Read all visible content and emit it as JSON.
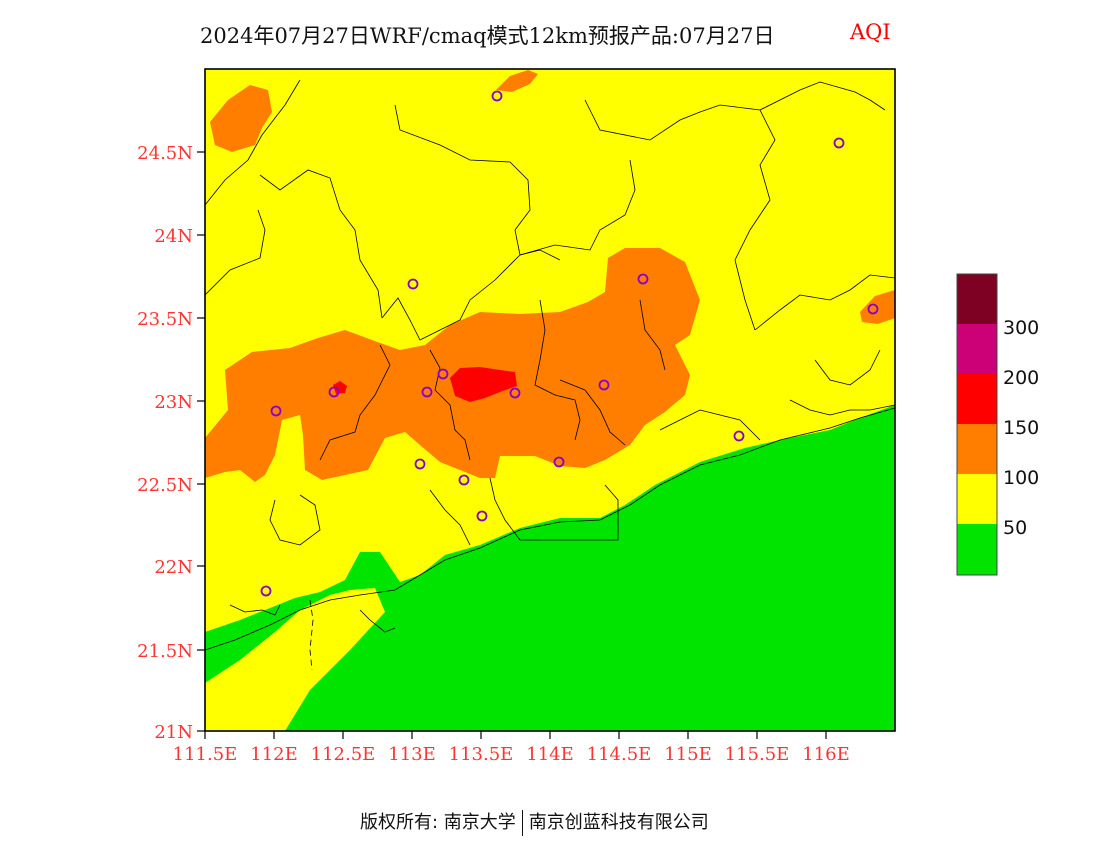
{
  "header": {
    "title": "2024年07月27日WRF/cmaq模式12km预报产品:07月27日",
    "pollutant": "AQI"
  },
  "map": {
    "lat_ticks": [
      "21N",
      "21.5N",
      "22N",
      "22.5N",
      "23N",
      "23.5N",
      "24N",
      "24.5N"
    ],
    "lon_ticks": [
      "111.5E",
      "112E",
      "112.5E",
      "113E",
      "113.5E",
      "114E",
      "114.5E",
      "115E",
      "115.5E",
      "116E"
    ],
    "extent": {
      "lon": [
        111.5,
        116.5
      ],
      "lat": [
        21,
        25
      ]
    },
    "category_colors": {
      "good": "#00e400",
      "moderate": "#ffff00",
      "usg": "#ff7e00",
      "unhealthy": "#ff0000",
      "very_unhealthy": "#cc0077",
      "hazardous": "#7e0023"
    }
  },
  "legend": {
    "labels": [
      "50",
      "100",
      "150",
      "200",
      "300"
    ],
    "colors": [
      "#00e400",
      "#ffff00",
      "#ff7e00",
      "#ff0000",
      "#cc0077",
      "#7e0023"
    ]
  },
  "footer": {
    "copyright": "版权所有: 南京大学",
    "company": "南京创蓝科技有限公司"
  }
}
